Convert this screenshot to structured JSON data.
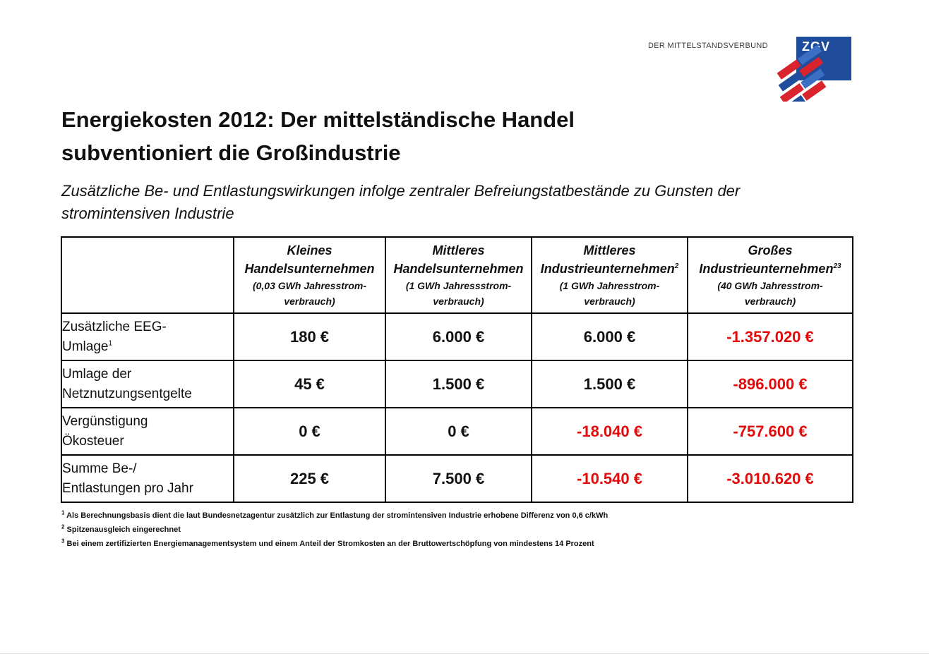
{
  "logo": {
    "text": "DER MITTELSTANDSVERBUND",
    "brand": "ZGV",
    "colors": {
      "blue": "#1f4d9b",
      "red": "#d9232d",
      "light_blue": "#3b6fc4"
    }
  },
  "document": {
    "title_line1": "Energiekosten 2012: Der mittelständische Handel",
    "title_line2": "subventioniert die Großindustrie",
    "subtitle_line1": "Zusätzliche Be- und Entlastungswirkungen infolge zentraler Befreiungstatbestände zu Gunsten der",
    "subtitle_line2": "stromintensiven Industrie"
  },
  "table": {
    "columns": [
      {
        "name_line1": "Kleines",
        "name_line2": "Handelsunternehmen",
        "name_sup": "",
        "usage_line1": "(0,03 GWh  Jahresstrom-",
        "usage_line2": "verbrauch)"
      },
      {
        "name_line1": "Mittleres",
        "name_line2": "Handelsunternehmen",
        "name_sup": "",
        "usage_line1": "(1 GWh Jahressstrom-",
        "usage_line2": "verbrauch)"
      },
      {
        "name_line1": "Mittleres",
        "name_line2": "Industrieunternehmen",
        "name_sup": "2",
        "usage_line1": "(1 GWh Jahresstrom-",
        "usage_line2": "verbrauch)"
      },
      {
        "name_line1": "Großes",
        "name_line2": "Industrieunternehmen",
        "name_sup": "23",
        "usage_line1": "(40 GWh Jahresstrom-",
        "usage_line2": "verbrauch)"
      }
    ],
    "rows": [
      {
        "label_line1": "Zusätzliche EEG-",
        "label_line2": "Umlage",
        "label_sup": "1",
        "values": [
          "180 €",
          "6.000 €",
          "6.000 €",
          "-1.357.020 €"
        ]
      },
      {
        "label_line1": "Umlage der",
        "label_line2": "Netznutzungsentgelte",
        "label_sup": "",
        "values": [
          "45 €",
          "1.500 €",
          "1.500 €",
          "-896.000 €"
        ]
      },
      {
        "label_line1": "Vergünstigung",
        "label_line2": "Ökosteuer",
        "label_sup": "",
        "values": [
          "0 €",
          "0 €",
          "-18.040 €",
          "-757.600 €"
        ]
      },
      {
        "label_line1": "Summe Be-/",
        "label_line2": "Entlastungen pro Jahr",
        "label_sup": "",
        "values": [
          "225 €",
          "7.500 €",
          "-10.540 €",
          "-3.010.620 €"
        ]
      }
    ],
    "negative_color": "#e20a0a"
  },
  "footnotes": [
    {
      "mark": "1",
      "text": "Als Berechnungsbasis dient die laut Bundesnetzagentur zusätzlich zur Entlastung der stromintensiven Industrie erhobene Differenz von 0,6 c/kWh"
    },
    {
      "mark": "2",
      "text": "Spitzenausgleich eingerechnet"
    },
    {
      "mark": "3",
      "text": "Bei einem zertifizierten Energiemanagementsystem und einem Anteil der Stromkosten an der Bruttowertschöpfung von mindestens 14 Prozent"
    }
  ]
}
